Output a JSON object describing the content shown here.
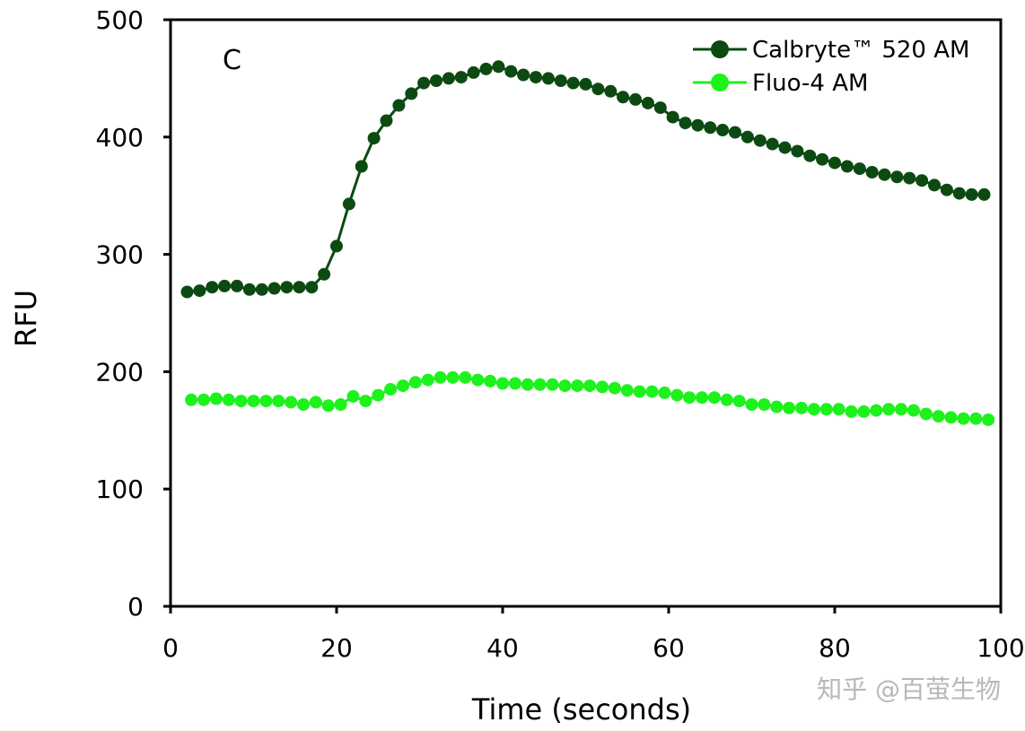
{
  "chart_data": {
    "type": "line",
    "panel_label": "C",
    "xlabel": "Time (seconds)",
    "ylabel": "RFU",
    "xlim": [
      0,
      100
    ],
    "ylim": [
      0,
      500
    ],
    "x_ticks": [
      "0",
      "20",
      "40",
      "60",
      "80",
      "100"
    ],
    "y_ticks": [
      "0",
      "100",
      "200",
      "300",
      "400",
      "500"
    ],
    "grid": false,
    "legend_position": "top-right",
    "series": [
      {
        "name": "Calbryte™ 520 AM",
        "color": "#0d4a12",
        "x": [
          2.0,
          3.5,
          5.0,
          6.5,
          8.0,
          9.5,
          11.0,
          12.5,
          14.0,
          15.5,
          17.0,
          18.5,
          20.0,
          21.5,
          23.0,
          24.5,
          26.0,
          27.5,
          29.0,
          30.5,
          32.0,
          33.5,
          35.0,
          36.5,
          38.0,
          39.5,
          41.0,
          42.5,
          44.0,
          45.5,
          47.0,
          48.5,
          50.0,
          51.5,
          53.0,
          54.5,
          56.0,
          57.5,
          59.0,
          60.5,
          62.0,
          63.5,
          65.0,
          66.5,
          68.0,
          69.5,
          71.0,
          72.5,
          74.0,
          75.5,
          77.0,
          78.5,
          80.0,
          81.5,
          83.0,
          84.5,
          86.0,
          87.5,
          89.0,
          90.5,
          92.0,
          93.5,
          95.0,
          96.5,
          98.0
        ],
        "values": [
          268,
          269,
          272,
          273,
          273,
          270,
          270,
          271,
          272,
          272,
          272,
          283,
          307,
          343,
          375,
          399,
          414,
          427,
          437,
          446,
          448,
          450,
          451,
          455,
          458,
          460,
          456,
          453,
          451,
          450,
          448,
          446,
          445,
          441,
          439,
          434,
          432,
          429,
          425,
          417,
          412,
          410,
          408,
          406,
          404,
          400,
          397,
          394,
          391,
          388,
          384,
          381,
          378,
          375,
          373,
          370,
          368,
          366,
          365,
          363,
          359,
          355,
          352,
          351,
          351
        ]
      },
      {
        "name": "Fluo-4 AM",
        "color": "#1df21d",
        "x": [
          2.5,
          4.0,
          5.5,
          7.0,
          8.5,
          10.0,
          11.5,
          13.0,
          14.5,
          16.0,
          17.5,
          19.0,
          20.5,
          22.0,
          23.5,
          25.0,
          26.5,
          28.0,
          29.5,
          31.0,
          32.5,
          34.0,
          35.5,
          37.0,
          38.5,
          40.0,
          41.5,
          43.0,
          44.5,
          46.0,
          47.5,
          49.0,
          50.5,
          52.0,
          53.5,
          55.0,
          56.5,
          58.0,
          59.5,
          61.0,
          62.5,
          64.0,
          65.5,
          67.0,
          68.5,
          70.0,
          71.5,
          73.0,
          74.5,
          76.0,
          77.5,
          79.0,
          80.5,
          82.0,
          83.5,
          85.0,
          86.5,
          88.0,
          89.5,
          91.0,
          92.5,
          94.0,
          95.5,
          97.0,
          98.5
        ],
        "values": [
          176,
          176,
          177,
          176,
          175,
          175,
          175,
          175,
          174,
          172,
          174,
          171,
          172,
          179,
          175,
          180,
          185,
          188,
          191,
          193,
          195,
          195,
          195,
          193,
          192,
          190,
          190,
          189,
          189,
          189,
          188,
          188,
          188,
          187,
          186,
          184,
          183,
          183,
          182,
          180,
          178,
          178,
          178,
          176,
          175,
          172,
          172,
          170,
          169,
          169,
          168,
          168,
          168,
          166,
          166,
          167,
          168,
          168,
          167,
          164,
          162,
          161,
          160,
          160,
          159
        ]
      }
    ]
  },
  "watermark": {
    "text": "知乎 @百萤生物",
    "color": "#b8b8b8"
  }
}
